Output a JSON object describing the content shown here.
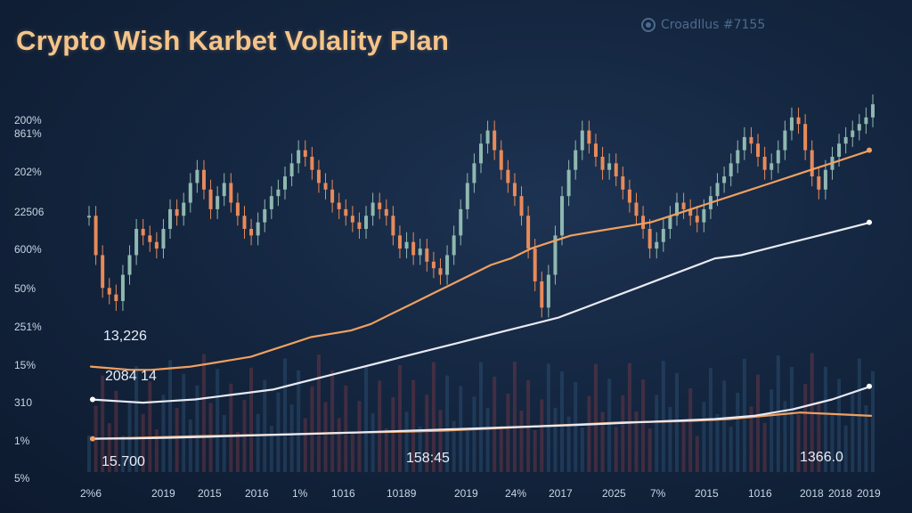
{
  "chart_data": {
    "type": "line",
    "title": "Crypto Wish Karbet Volality Plan",
    "brand": "CroadIlus #7155",
    "y_tick_labels": [
      "200%",
      "861%",
      "202%",
      "22506",
      "600%",
      "50%",
      "251%",
      "15%",
      "310",
      "1%",
      "5%"
    ],
    "x_tick_labels": [
      "2%6",
      "2019",
      "2015",
      "2016",
      "1%",
      "1016",
      "10189",
      "2019",
      "24%",
      "2017",
      "2025",
      "7%",
      "2015",
      "1016",
      "2018",
      "2018",
      "2019"
    ],
    "annotations": [
      "13,226",
      "2084 14",
      "15.700",
      "158:45",
      "1366.0"
    ],
    "series": [
      {
        "name": "candles",
        "color_up": "#8fb8b0",
        "color_down": "#e88a5a",
        "values": [
          70,
          58,
          48,
          46,
          44,
          52,
          58,
          66,
          64,
          62,
          60,
          66,
          72,
          70,
          74,
          80,
          84,
          78,
          72,
          76,
          80,
          74,
          70,
          66,
          64,
          68,
          72,
          76,
          78,
          82,
          86,
          90,
          88,
          84,
          80,
          78,
          74,
          72,
          70,
          68,
          66,
          70,
          74,
          72,
          70,
          64,
          60,
          62,
          58,
          60,
          56,
          54,
          52,
          58,
          64,
          72,
          80,
          86,
          92,
          96,
          90,
          84,
          80,
          76,
          70,
          60,
          50,
          42,
          52,
          64,
          76,
          84,
          90,
          96,
          92,
          88,
          84,
          86,
          82,
          78,
          74,
          70,
          66,
          60,
          62,
          66,
          70,
          74,
          72,
          70,
          68,
          72,
          76,
          80,
          82,
          86,
          90,
          94,
          92,
          88,
          84,
          86,
          90,
          96,
          100,
          98,
          90,
          82,
          78,
          84,
          88,
          92,
          94,
          96,
          98,
          100,
          104
        ]
      },
      {
        "name": "orange-trend",
        "color": "#f0a060",
        "values": [
          24,
          23.5,
          23,
          23,
          23.5,
          24,
          25,
          26,
          27,
          29,
          31,
          33,
          34,
          35,
          37,
          40,
          43,
          46,
          49,
          52,
          55,
          57,
          60,
          62,
          64,
          65,
          66,
          67,
          68,
          70,
          72,
          74,
          76,
          78,
          80,
          82,
          84,
          86,
          88,
          90
        ]
      },
      {
        "name": "white-trend",
        "color": "#e8eaf2",
        "values": [
          14,
          13.5,
          13,
          13.5,
          14,
          15,
          16,
          17,
          19,
          21,
          23,
          25,
          27,
          29,
          31,
          33,
          35,
          37,
          39,
          42,
          45,
          48,
          51,
          54,
          57,
          58,
          60,
          62,
          64,
          66,
          68
        ]
      },
      {
        "name": "low-orange",
        "color": "#f0a060",
        "values": [
          2,
          2.2,
          2.5,
          2.8,
          3,
          3.2,
          3.5,
          3.8,
          4,
          4.2,
          4.5,
          5,
          5.5,
          6,
          6.5,
          7,
          7.2,
          7.5,
          8,
          9,
          10,
          9.5,
          9
        ]
      },
      {
        "name": "low-white",
        "color": "#e8eaf2",
        "values": [
          2,
          2.1,
          2.3,
          2.6,
          3,
          3.3,
          3.6,
          4,
          4.4,
          4.8,
          5.2,
          5.6,
          6,
          6.5,
          7,
          7.5,
          8,
          9,
          11,
          14,
          18
        ]
      }
    ],
    "ylim": [
      0,
      110
    ],
    "grid": false
  }
}
